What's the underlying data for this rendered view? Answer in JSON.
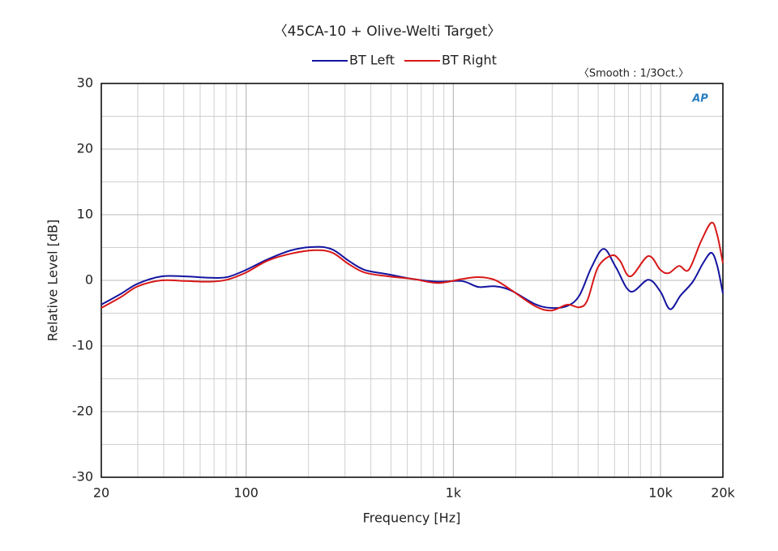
{
  "chart_data": {
    "type": "line",
    "title": "〈45CA-10 + Olive-Welti Target〉",
    "annotation": "〈Smooth : 1/3Oct.〉",
    "logo": "AP",
    "x_label": "Frequency [Hz]",
    "y_label": "Relative Level [dB]",
    "log_x": true,
    "grid": true,
    "minor_grid": true,
    "legend": "top",
    "xlim": [
      20,
      20000
    ],
    "xticks": [
      20,
      100,
      {
        "value": 1000,
        "label": "1k"
      },
      {
        "value": 10000,
        "label": "10k"
      },
      {
        "value": 20000,
        "label": "20k"
      }
    ],
    "ylim": [
      -30,
      30
    ],
    "yticks": [
      30,
      20,
      10,
      0,
      -10,
      -20,
      -30
    ],
    "series": [
      {
        "name": "BT Left",
        "color": "#1414a0",
        "x": [
          20,
          25,
          30,
          39,
          51,
          67,
          81,
          100,
          127,
          166,
          217,
          261,
          312,
          373,
          489,
          641,
          840,
          1100,
          1318,
          1577,
          1888,
          2473,
          2965,
          3548,
          4060,
          4645,
          5320,
          6090,
          7160,
          8730,
          9980,
          11120,
          12500,
          14320,
          16100,
          17620,
          18790,
          20000
        ],
        "values": [
          -3.7,
          -2.0,
          -0.5,
          0.6,
          0.6,
          0.4,
          0.5,
          1.6,
          3.2,
          4.6,
          5.1,
          4.7,
          3.0,
          1.6,
          0.9,
          0.2,
          -0.2,
          -0.1,
          -1.0,
          -0.9,
          -1.5,
          -3.6,
          -4.2,
          -3.9,
          -2.3,
          2.0,
          4.8,
          2.0,
          -1.7,
          0.1,
          -1.7,
          -4.4,
          -2.3,
          -0.2,
          2.7,
          4.2,
          2.2,
          -2.0
        ]
      },
      {
        "name": "BT Right",
        "color": "#d81818",
        "x": [
          20,
          25,
          30,
          39,
          51,
          67,
          81,
          100,
          127,
          166,
          217,
          261,
          312,
          373,
          489,
          641,
          840,
          1100,
          1318,
          1577,
          1888,
          2473,
          2965,
          3548,
          4060,
          4440,
          4990,
          5820,
          6370,
          7160,
          8730,
          9980,
          10940,
          12280,
          13680,
          15660,
          17620,
          18790,
          20000
        ],
        "values": [
          -4.2,
          -2.5,
          -0.9,
          0,
          -0.1,
          -0.2,
          0.1,
          1.2,
          3.0,
          4.1,
          4.6,
          4.2,
          2.5,
          1.2,
          0.6,
          0.2,
          -0.4,
          0.2,
          0.5,
          0.1,
          -1.4,
          -3.9,
          -4.6,
          -3.7,
          -4.1,
          -3.0,
          2.0,
          3.8,
          3.0,
          0.6,
          3.7,
          1.6,
          1.1,
          2.2,
          1.6,
          5.9,
          8.8,
          6.9,
          2.6
        ]
      }
    ]
  }
}
